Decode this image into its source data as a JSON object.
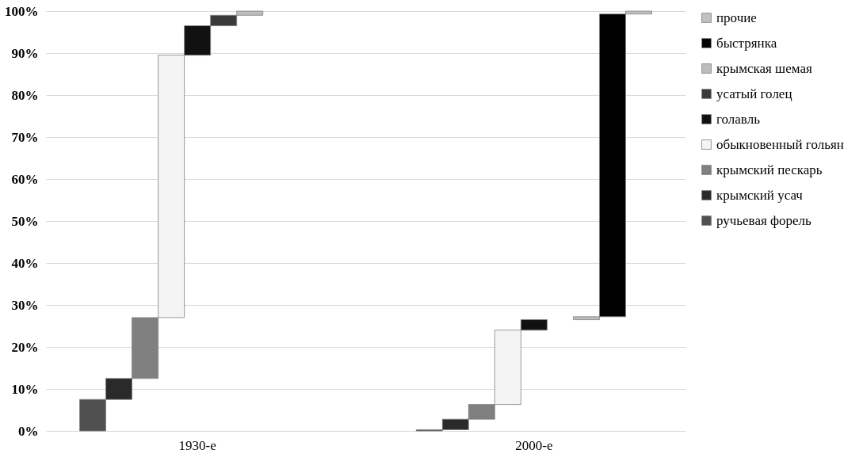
{
  "chart_data": {
    "type": "bar",
    "categories": [
      "1930-е",
      "2000-е"
    ],
    "series": [
      {
        "name": "ручьевая форель",
        "color": "#505050",
        "values": [
          7.5,
          0.3
        ],
        "base": [
          0,
          0
        ]
      },
      {
        "name": "крымский усач",
        "color": "#2a2a2a",
        "values": [
          5,
          2.5
        ],
        "base": [
          7.5,
          0.3
        ]
      },
      {
        "name": "крымский пескарь",
        "color": "#808080",
        "values": [
          14.5,
          3.5
        ],
        "base": [
          12.5,
          2.8
        ]
      },
      {
        "name": "обыкновенный гольян",
        "color": "#f4f4f4",
        "values": [
          62.5,
          17.7
        ],
        "base": [
          27,
          6.3
        ]
      },
      {
        "name": "голавль",
        "color": "#111111",
        "values": [
          7,
          2.5
        ],
        "base": [
          89.5,
          24
        ]
      },
      {
        "name": "усатый голец",
        "color": "#3a3a3a",
        "values": [
          2.5,
          null
        ],
        "base": [
          96.5,
          null
        ]
      },
      {
        "name": "крымская шемая",
        "color": "#bdbdbd",
        "values": [
          1,
          0.7
        ],
        "base": [
          99,
          26.5
        ]
      },
      {
        "name": "быстрянка",
        "color": "#000000",
        "values": [
          null,
          72.1
        ],
        "base": [
          null,
          27.2
        ]
      },
      {
        "name": "прочие",
        "color": "#c0c0c0",
        "values": [
          null,
          0.7
        ],
        "base": [
          null,
          99.3
        ]
      }
    ],
    "ylim": [
      0,
      100
    ],
    "yticks": [
      {
        "value": 0,
        "label": "0%"
      },
      {
        "value": 10,
        "label": "10%"
      },
      {
        "value": 20,
        "label": "20%"
      },
      {
        "value": 30,
        "label": "30%"
      },
      {
        "value": 40,
        "label": "40%"
      },
      {
        "value": 50,
        "label": "50%"
      },
      {
        "value": 60,
        "label": "60%"
      },
      {
        "value": 70,
        "label": "70%"
      },
      {
        "value": 80,
        "label": "80%"
      },
      {
        "value": 90,
        "label": "90%"
      },
      {
        "value": 100,
        "label": "100%"
      }
    ],
    "grid": "y",
    "legend": "right"
  }
}
